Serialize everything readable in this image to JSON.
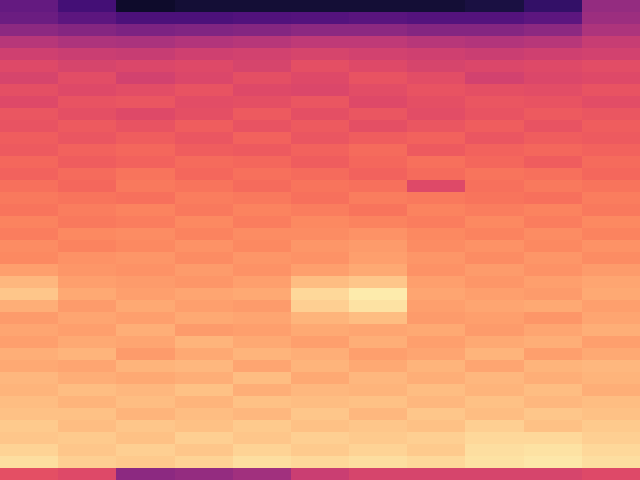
{
  "chart_data": {
    "type": "heatmap",
    "tick_labels": false,
    "zlim": [
      0,
      100
    ],
    "cells": [
      [
        30,
        22,
        8,
        10,
        10,
        10,
        10,
        10,
        12,
        18,
        42
      ],
      [
        32,
        28,
        24,
        24,
        25,
        26,
        27,
        26,
        26,
        28,
        44
      ],
      [
        40,
        38,
        36,
        37,
        38,
        40,
        40,
        38,
        38,
        40,
        48
      ],
      [
        50,
        48,
        47,
        49,
        50,
        52,
        52,
        50,
        49,
        50,
        54
      ],
      [
        56,
        55,
        54,
        56,
        57,
        58,
        57,
        56,
        55,
        56,
        57
      ],
      [
        60,
        58,
        59,
        60,
        58,
        62,
        60,
        58,
        59,
        60,
        61
      ],
      [
        58,
        61,
        57,
        59,
        62,
        60,
        63,
        61,
        57,
        59,
        60
      ],
      [
        62,
        60,
        61,
        63,
        60,
        59,
        61,
        63,
        62,
        61,
        63
      ],
      [
        60,
        63,
        64,
        61,
        62,
        64,
        60,
        62,
        64,
        63,
        61
      ],
      [
        64,
        62,
        60,
        62,
        65,
        62,
        64,
        61,
        63,
        65,
        64
      ],
      [
        63,
        65,
        63,
        66,
        63,
        65,
        62,
        64,
        66,
        63,
        66
      ],
      [
        66,
        64,
        66,
        64,
        67,
        64,
        66,
        67,
        64,
        66,
        65
      ],
      [
        65,
        67,
        68,
        66,
        65,
        67,
        69,
        65,
        67,
        68,
        67
      ],
      [
        68,
        66,
        67,
        69,
        68,
        66,
        68,
        70,
        68,
        66,
        69
      ],
      [
        67,
        69,
        71,
        68,
        70,
        69,
        67,
        69,
        71,
        70,
        68
      ],
      [
        70,
        68,
        72,
        71,
        69,
        71,
        70,
        60,
        70,
        72,
        71
      ],
      [
        72,
        71,
        70,
        73,
        72,
        70,
        73,
        72,
        71,
        70,
        73
      ],
      [
        71,
        73,
        74,
        72,
        74,
        73,
        71,
        74,
        73,
        74,
        72
      ],
      [
        74,
        72,
        73,
        75,
        73,
        75,
        74,
        73,
        75,
        73,
        75
      ],
      [
        73,
        75,
        76,
        74,
        76,
        76,
        77,
        75,
        74,
        76,
        74
      ],
      [
        76,
        74,
        75,
        77,
        75,
        78,
        79,
        76,
        77,
        75,
        77
      ],
      [
        75,
        77,
        78,
        76,
        78,
        77,
        80,
        78,
        76,
        78,
        76
      ],
      [
        80,
        78,
        77,
        79,
        77,
        80,
        82,
        77,
        79,
        77,
        79
      ],
      [
        85,
        80,
        79,
        78,
        80,
        86,
        88,
        80,
        78,
        80,
        81
      ],
      [
        88,
        82,
        80,
        81,
        82,
        92,
        96,
        81,
        80,
        79,
        82
      ],
      [
        83,
        79,
        82,
        80,
        79,
        90,
        94,
        80,
        81,
        82,
        80
      ],
      [
        79,
        81,
        80,
        82,
        81,
        84,
        86,
        79,
        80,
        78,
        81
      ],
      [
        81,
        80,
        83,
        79,
        80,
        82,
        81,
        82,
        79,
        81,
        83
      ],
      [
        80,
        82,
        81,
        84,
        82,
        80,
        83,
        80,
        82,
        83,
        80
      ],
      [
        83,
        84,
        79,
        82,
        84,
        83,
        80,
        81,
        84,
        80,
        82
      ],
      [
        82,
        81,
        84,
        85,
        81,
        84,
        82,
        84,
        81,
        84,
        85
      ],
      [
        85,
        83,
        82,
        83,
        86,
        82,
        85,
        83,
        85,
        83,
        84
      ],
      [
        84,
        86,
        85,
        87,
        83,
        85,
        84,
        86,
        84,
        86,
        83
      ],
      [
        86,
        84,
        86,
        84,
        87,
        86,
        87,
        85,
        87,
        85,
        86
      ],
      [
        87,
        87,
        84,
        86,
        85,
        88,
        85,
        88,
        86,
        88,
        87
      ],
      [
        89,
        86,
        88,
        87,
        89,
        87,
        88,
        87,
        90,
        87,
        89
      ],
      [
        88,
        89,
        87,
        90,
        88,
        90,
        89,
        90,
        92,
        92,
        90
      ],
      [
        91,
        88,
        90,
        88,
        91,
        89,
        91,
        89,
        93,
        94,
        92
      ],
      [
        93,
        90,
        89,
        91,
        93,
        92,
        93,
        92,
        94,
        95,
        93
      ],
      [
        62,
        60,
        40,
        42,
        45,
        55,
        58,
        58,
        58,
        58,
        60
      ]
    ]
  }
}
